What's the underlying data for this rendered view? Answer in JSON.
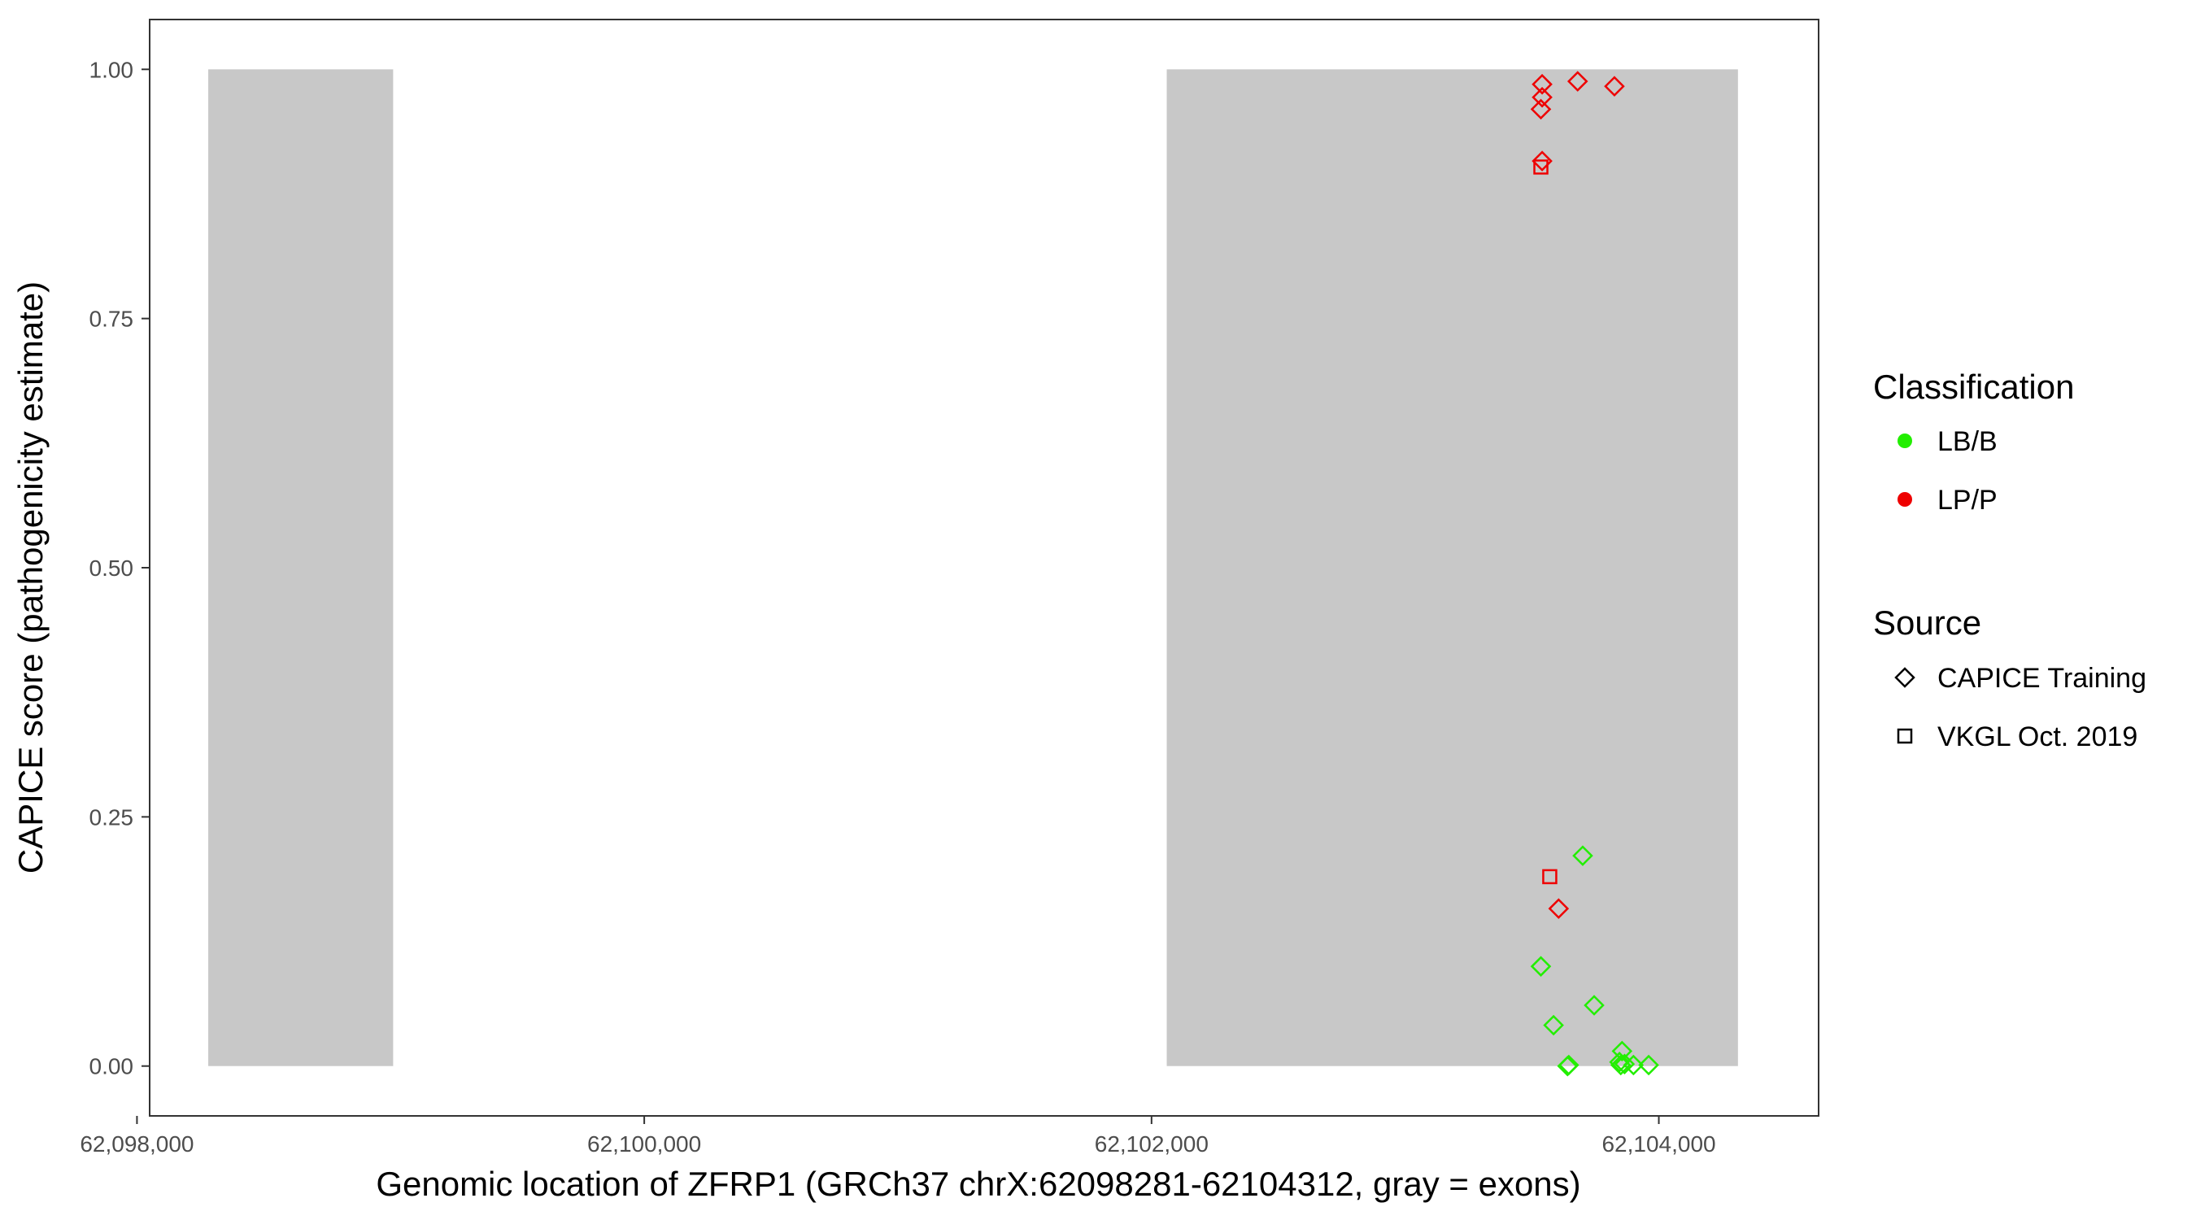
{
  "chart_data": {
    "type": "scatter",
    "xlabel": "Genomic location of ZFRP1 (GRCh37 chrX:62098281-62104312, gray = exons)",
    "ylabel": "CAPICE score (pathogenicity estimate)",
    "xlim": [
      62098050,
      62104630
    ],
    "ylim": [
      -0.05,
      1.05
    ],
    "x_ticks": [
      62098000,
      62100000,
      62102000,
      62104000
    ],
    "x_tick_labels": [
      "62,098,000",
      "62,100,000",
      "62,102,000",
      "62,104,000"
    ],
    "y_ticks": [
      0,
      0.25,
      0.5,
      0.75,
      1.0
    ],
    "y_tick_labels": [
      "0.00",
      "0.25",
      "0.50",
      "0.75",
      "1.00"
    ],
    "grid": false,
    "exons": [
      {
        "start": 62098281,
        "end": 62099010,
        "ymin": 0,
        "ymax": 1
      },
      {
        "start": 62102060,
        "end": 62104312,
        "ymin": 0,
        "ymax": 1
      }
    ],
    "exon_color": "#c8c8c8",
    "legend": {
      "placement": "right",
      "classification": {
        "title": "Classification",
        "items": [
          {
            "label": "LB/B",
            "color": "#22ee00"
          },
          {
            "label": "LP/P",
            "color": "#ee0000"
          }
        ]
      },
      "source": {
        "title": "Source",
        "items": [
          {
            "label": "CAPICE Training",
            "shape": "diamond"
          },
          {
            "label": "VKGL Oct. 2019",
            "shape": "square"
          }
        ]
      }
    },
    "points": [
      {
        "x": 62103540,
        "y": 0.985,
        "classification": "LP/P",
        "source": "CAPICE Training"
      },
      {
        "x": 62103540,
        "y": 0.972,
        "classification": "LP/P",
        "source": "CAPICE Training"
      },
      {
        "x": 62103535,
        "y": 0.96,
        "classification": "LP/P",
        "source": "CAPICE Training"
      },
      {
        "x": 62103680,
        "y": 0.988,
        "classification": "LP/P",
        "source": "CAPICE Training"
      },
      {
        "x": 62103825,
        "y": 0.983,
        "classification": "LP/P",
        "source": "CAPICE Training"
      },
      {
        "x": 62103540,
        "y": 0.908,
        "classification": "LP/P",
        "source": "CAPICE Training"
      },
      {
        "x": 62103535,
        "y": 0.902,
        "classification": "LP/P",
        "source": "VKGL Oct. 2019"
      },
      {
        "x": 62103570,
        "y": 0.19,
        "classification": "LP/P",
        "source": "VKGL Oct. 2019"
      },
      {
        "x": 62103605,
        "y": 0.158,
        "classification": "LP/P",
        "source": "CAPICE Training"
      },
      {
        "x": 62103700,
        "y": 0.211,
        "classification": "LB/B",
        "source": "CAPICE Training"
      },
      {
        "x": 62103535,
        "y": 0.1,
        "classification": "LB/B",
        "source": "CAPICE Training"
      },
      {
        "x": 62103745,
        "y": 0.061,
        "classification": "LB/B",
        "source": "CAPICE Training"
      },
      {
        "x": 62103585,
        "y": 0.041,
        "classification": "LB/B",
        "source": "CAPICE Training"
      },
      {
        "x": 62103640,
        "y": 0.0,
        "classification": "LB/B",
        "source": "CAPICE Training"
      },
      {
        "x": 62103645,
        "y": 0.001,
        "classification": "LB/B",
        "source": "CAPICE Training"
      },
      {
        "x": 62103855,
        "y": 0.015,
        "classification": "LB/B",
        "source": "CAPICE Training"
      },
      {
        "x": 62103845,
        "y": 0.004,
        "classification": "LB/B",
        "source": "CAPICE Training"
      },
      {
        "x": 62103865,
        "y": 0.002,
        "classification": "LB/B",
        "source": "CAPICE Training"
      },
      {
        "x": 62103850,
        "y": 0.001,
        "classification": "LB/B",
        "source": "CAPICE Training"
      },
      {
        "x": 62103900,
        "y": 0.001,
        "classification": "LB/B",
        "source": "CAPICE Training"
      },
      {
        "x": 62103960,
        "y": 0.001,
        "classification": "LB/B",
        "source": "CAPICE Training"
      }
    ]
  }
}
